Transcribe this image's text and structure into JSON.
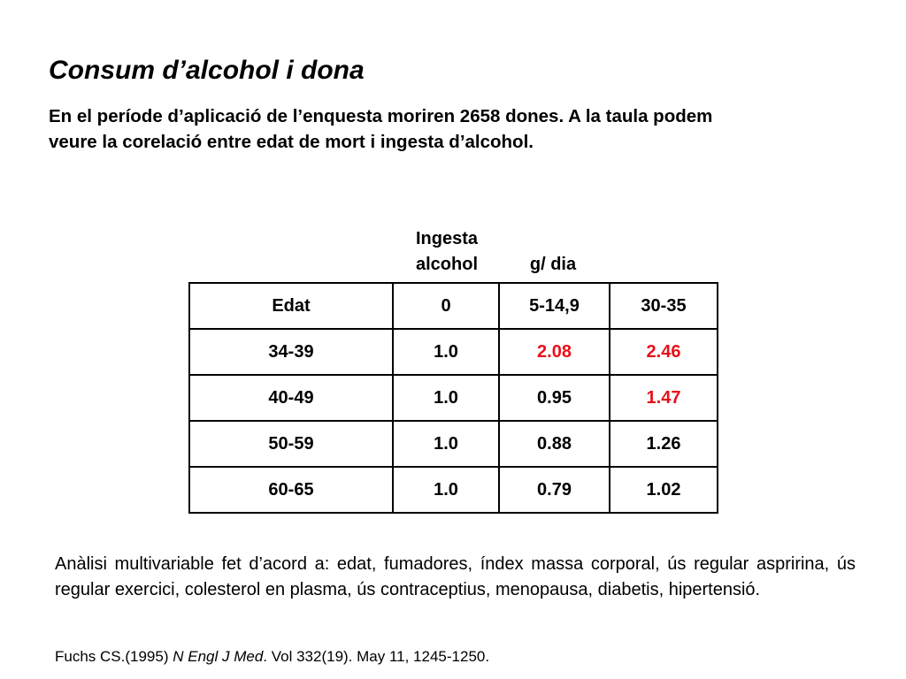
{
  "slide": {
    "title": "Consum d’alcohol i dona",
    "intro_lines": [
      "En el període d’aplicació de l’enquesta moriren 2658 dones. A la taula podem",
      "veure la corelació entre edat de mort i ingesta d’alcohol."
    ]
  },
  "table": {
    "header_group_line1": "Ingesta",
    "header_group_line2": "alcohol",
    "header_units": "g/ dia",
    "columns": [
      "Edat",
      "0",
      "5-14,9",
      "30-35"
    ],
    "rows": [
      {
        "age": "34-39",
        "values": [
          "1.0",
          "2.08",
          "2.46"
        ]
      },
      {
        "age": "40-49",
        "values": [
          "1.0",
          "0.95",
          "1.47"
        ]
      },
      {
        "age": "50-59",
        "values": [
          "1.0",
          "0.88",
          "1.26"
        ]
      },
      {
        "age": "60-65",
        "values": [
          "1.0",
          "0.79",
          "1.02"
        ]
      }
    ],
    "highlight_color": "#e8101a"
  },
  "footer": {
    "analysis": "Anàlisi multivariable fet d’acord a: edat, fumadores, índex massa corporal, ús regular aspririna, ús regular exercici, colesterol en plasma, ús contraceptius, menopausa, diabetis, hipertensió.",
    "citation_prefix": "Fuchs CS.(1995) ",
    "citation_journal": "N Engl J Med",
    "citation_suffix": ". Vol 332(19). May 11, 1245-1250."
  }
}
